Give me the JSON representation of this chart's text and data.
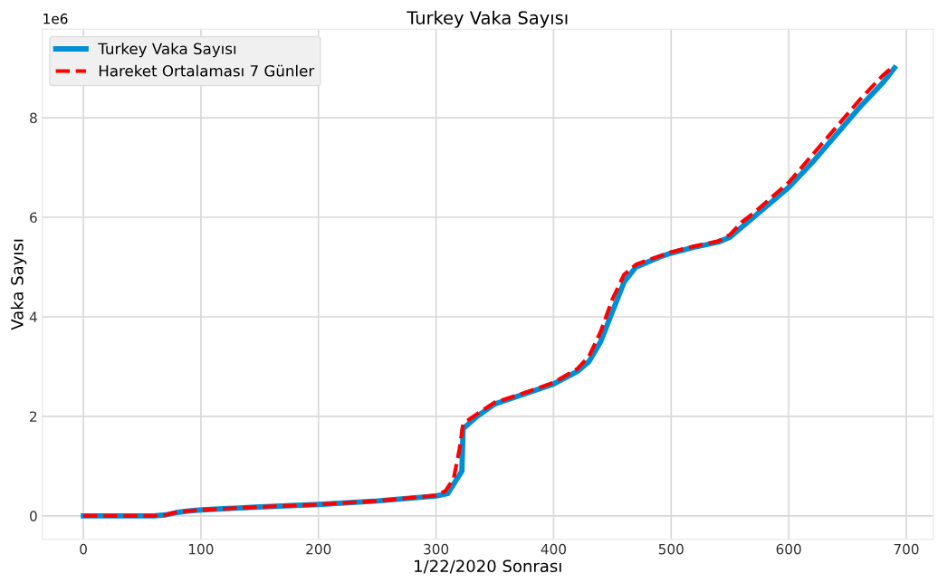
{
  "chart_data": {
    "type": "line",
    "title": "Turkey Vaka Sayısı",
    "xlabel": "1/22/2020 Sonrası",
    "ylabel": "Vaka Sayısı",
    "annotations": [
      "1e6"
    ],
    "series": [
      {
        "name": "Turkey Vaka Sayısı",
        "color": "#008fd5",
        "line_style": "solid",
        "x": [
          0,
          60,
          70,
          80,
          90,
          100,
          150,
          200,
          250,
          300,
          310,
          322,
          323,
          335,
          350,
          375,
          400,
          420,
          430,
          440,
          450,
          460,
          470,
          490,
          500,
          520,
          540,
          550,
          560,
          570,
          600,
          620,
          640,
          660,
          680,
          690
        ],
        "values": [
          0,
          0,
          0.02,
          0.07,
          0.1,
          0.12,
          0.18,
          0.23,
          0.3,
          0.4,
          0.45,
          0.9,
          1.75,
          2.0,
          2.25,
          2.45,
          2.65,
          2.9,
          3.1,
          3.5,
          4.1,
          4.7,
          5.0,
          5.2,
          5.28,
          5.4,
          5.5,
          5.6,
          5.8,
          6.0,
          6.6,
          7.1,
          7.65,
          8.2,
          8.7,
          9.0
        ]
      },
      {
        "name": "Hareket Ortalaması 7 Günler",
        "color": "#ff0000",
        "line_style": "dashed",
        "x": [
          0,
          60,
          70,
          80,
          100,
          150,
          200,
          250,
          300,
          308,
          315,
          320,
          323,
          335,
          350,
          375,
          400,
          420,
          430,
          440,
          450,
          460,
          470,
          490,
          500,
          520,
          540,
          550,
          560,
          570,
          600,
          620,
          640,
          660,
          680,
          690
        ],
        "values": [
          0,
          0,
          0.02,
          0.08,
          0.12,
          0.18,
          0.23,
          0.3,
          0.41,
          0.5,
          0.75,
          1.35,
          1.85,
          2.05,
          2.28,
          2.47,
          2.68,
          2.95,
          3.2,
          3.7,
          4.35,
          4.85,
          5.05,
          5.22,
          5.3,
          5.42,
          5.52,
          5.65,
          5.9,
          6.08,
          6.7,
          7.25,
          7.8,
          8.35,
          8.85,
          9.05
        ]
      }
    ],
    "xlim": [
      -35,
      723
    ],
    "ylim": [
      -0.47,
      9.78
    ],
    "xticks": [
      0,
      100,
      200,
      300,
      400,
      500,
      600,
      700
    ],
    "yticks": [
      0,
      2,
      4,
      6,
      8
    ],
    "grid": true,
    "legend": "top left"
  }
}
